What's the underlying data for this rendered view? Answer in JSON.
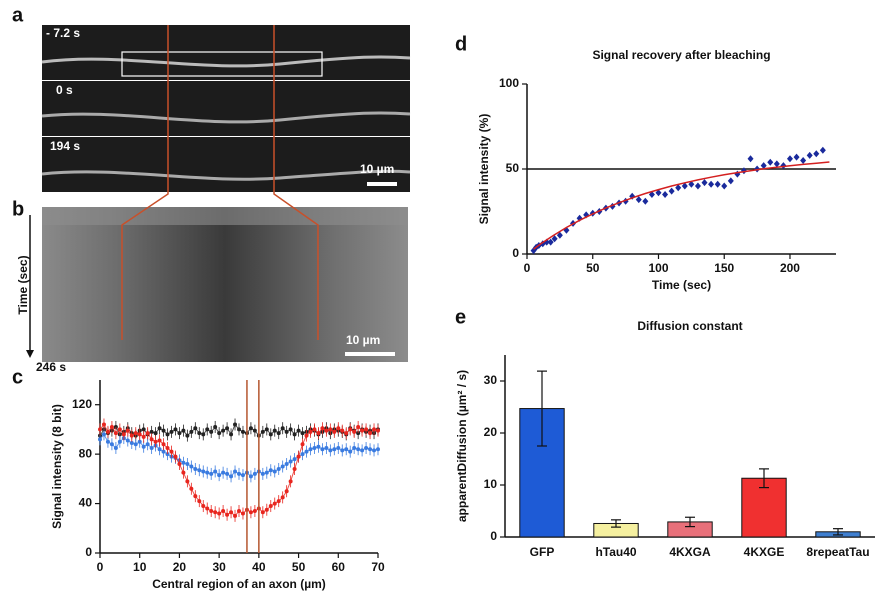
{
  "panel_labels": [
    "a",
    "b",
    "c",
    "d",
    "e"
  ],
  "micrographs": {
    "a": {
      "time_labels": [
        "- 7.2 s",
        "0 s",
        "194 s"
      ],
      "scale_bar": "10 µm"
    },
    "b": {
      "axis_label": "Time (sec)",
      "end_time": "246 s",
      "scale_bar": "10 µm"
    }
  },
  "chart_data": [
    {
      "type": "line",
      "xlabel": "Central region of an axon (µm)",
      "ylabel": "Signal intensity (8 bit)",
      "x": [
        0,
        1,
        2,
        3,
        4,
        5,
        6,
        7,
        8,
        9,
        10,
        11,
        12,
        13,
        14,
        15,
        16,
        17,
        18,
        19,
        20,
        21,
        22,
        23,
        24,
        25,
        26,
        27,
        28,
        29,
        30,
        31,
        32,
        33,
        34,
        35,
        36,
        37,
        38,
        39,
        40,
        41,
        42,
        43,
        44,
        45,
        46,
        47,
        48,
        49,
        50,
        51,
        52,
        53,
        54,
        55,
        56,
        57,
        58,
        59,
        60,
        61,
        62,
        63,
        64,
        65,
        66,
        67,
        68,
        69,
        70
      ],
      "series": [
        {
          "color": "#222222",
          "values": [
            95,
            100,
            97,
            99,
            102,
            96,
            98,
            101,
            97,
            95,
            99,
            100,
            96,
            98,
            97,
            101,
            99,
            96,
            98,
            100,
            97,
            99,
            95,
            98,
            101,
            97,
            96,
            100,
            98,
            102,
            97,
            99,
            101,
            96,
            104,
            100,
            98,
            97,
            101,
            99,
            95,
            98,
            100,
            96,
            99,
            97,
            101,
            98,
            100,
            96,
            99,
            97,
            98,
            100,
            99,
            96,
            98,
            101,
            97,
            100,
            99,
            98,
            96,
            101,
            99,
            97,
            100,
            98,
            99,
            97,
            100
          ]
        },
        {
          "color": "#3a7be0",
          "values": [
            92,
            96,
            90,
            88,
            85,
            90,
            93,
            91,
            89,
            88,
            90,
            86,
            88,
            85,
            87,
            84,
            82,
            80,
            78,
            77,
            75,
            73,
            72,
            70,
            68,
            67,
            66,
            65,
            64,
            66,
            63,
            65,
            64,
            62,
            66,
            64,
            63,
            65,
            62,
            64,
            66,
            64,
            65,
            67,
            66,
            68,
            70,
            72,
            74,
            76,
            78,
            80,
            82,
            84,
            85,
            86,
            84,
            85,
            83,
            84,
            85,
            83,
            84,
            82,
            85,
            84,
            83,
            85,
            84,
            83,
            84
          ]
        },
        {
          "color": "#e8251e",
          "values": [
            100,
            104,
            98,
            102,
            97,
            100,
            96,
            99,
            95,
            97,
            96,
            94,
            97,
            92,
            90,
            91,
            88,
            85,
            82,
            78,
            72,
            65,
            58,
            52,
            46,
            42,
            38,
            36,
            34,
            33,
            32,
            34,
            31,
            33,
            30,
            34,
            32,
            35,
            33,
            34,
            36,
            33,
            35,
            38,
            40,
            42,
            45,
            50,
            58,
            68,
            78,
            88,
            95,
            98,
            100,
            97,
            101,
            99,
            100,
            98,
            101,
            99,
            97,
            100,
            98,
            102,
            99,
            100,
            97,
            100,
            99
          ]
        }
      ],
      "vlines": [
        37,
        40
      ],
      "vline_color": "#b5562f",
      "xlim": [
        0,
        70
      ],
      "xticks": [
        0,
        10,
        20,
        30,
        40,
        50,
        60,
        70
      ],
      "ylim": [
        0,
        140
      ],
      "yticks": [
        0,
        40,
        80,
        120
      ]
    },
    {
      "type": "scatter",
      "title": "Signal recovery after bleaching",
      "xlabel": "Time (sec)",
      "ylabel": "Signal intensity (%)",
      "color": "#1a2a9c",
      "x": [
        5,
        7,
        9,
        12,
        15,
        18,
        21,
        25,
        30,
        35,
        40,
        45,
        50,
        55,
        60,
        65,
        70,
        75,
        80,
        85,
        90,
        95,
        100,
        105,
        110,
        115,
        120,
        125,
        130,
        135,
        140,
        145,
        150,
        155,
        160,
        165,
        170,
        175,
        180,
        185,
        190,
        195,
        200,
        205,
        210,
        215,
        220,
        225
      ],
      "values": [
        2,
        4,
        5,
        6,
        7,
        7,
        9,
        11,
        14,
        18,
        21,
        23,
        24,
        25,
        27,
        28,
        30,
        31,
        34,
        32,
        31,
        35,
        36,
        35,
        37,
        39,
        40,
        41,
        40,
        42,
        41,
        41,
        40,
        43,
        47,
        49,
        56,
        50,
        52,
        54,
        53,
        52,
        56,
        57,
        55,
        58,
        59,
        61
      ],
      "fit": {
        "color": "#d42020",
        "x": [
          5,
          10,
          20,
          30,
          40,
          50,
          60,
          70,
          80,
          90,
          100,
          110,
          120,
          130,
          140,
          150,
          160,
          170,
          180,
          190,
          200,
          210,
          220,
          230
        ],
        "values": [
          2.9,
          5.7,
          10.9,
          15.6,
          19.8,
          23.6,
          27.1,
          30.2,
          33.0,
          35.6,
          37.9,
          40.0,
          41.9,
          43.6,
          45.2,
          46.6,
          47.9,
          49.0,
          50.1,
          51.0,
          51.9,
          52.7,
          53.4,
          54.1
        ]
      },
      "hline": 50,
      "xlim": [
        0,
        235
      ],
      "xticks": [
        0,
        50,
        100,
        150,
        200
      ],
      "ylim": [
        0,
        100
      ],
      "yticks": [
        0,
        50,
        100
      ]
    },
    {
      "type": "bar",
      "title": "Diffusion constant",
      "ylabel": "apparentDiffusion (µm² / s)",
      "categories": [
        "GFP",
        "hTau40",
        "4KXGA",
        "4KXGE",
        "8repeatTau"
      ],
      "values": [
        24.7,
        2.6,
        2.9,
        11.3,
        1.0
      ],
      "errors": [
        7.2,
        0.7,
        0.9,
        1.8,
        0.6
      ],
      "colors": [
        "#1e5bd6",
        "#f5f0a0",
        "#e8707a",
        "#f03030",
        "#3f7fd0"
      ],
      "ylim": [
        0,
        35
      ],
      "yticks": [
        0,
        10,
        20,
        30
      ]
    }
  ]
}
